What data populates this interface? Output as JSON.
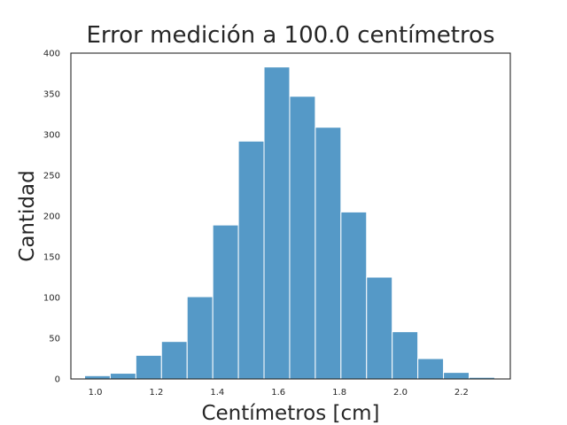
{
  "chart_data": {
    "type": "bar",
    "title": "Error medición a 100.0 centímetros",
    "xlabel": "Centímetros [cm]",
    "ylabel": "Cantidad",
    "xlim": [
      0.92,
      2.36
    ],
    "ylim": [
      0,
      400
    ],
    "x_ticks": [
      1.0,
      1.2,
      1.4,
      1.6,
      1.8,
      2.0,
      2.2
    ],
    "y_ticks": [
      0,
      50,
      100,
      150,
      200,
      250,
      300,
      350,
      400
    ],
    "bin_edges": [
      0.965,
      1.049,
      1.133,
      1.217,
      1.301,
      1.385,
      1.469,
      1.553,
      1.637,
      1.721,
      1.805,
      1.889,
      1.973,
      2.057,
      2.141,
      2.225,
      2.309
    ],
    "values": [
      4,
      7,
      29,
      46,
      101,
      189,
      292,
      383,
      347,
      309,
      205,
      125,
      58,
      25,
      8,
      2
    ],
    "bar_color": "#5599c7",
    "grid": false
  }
}
